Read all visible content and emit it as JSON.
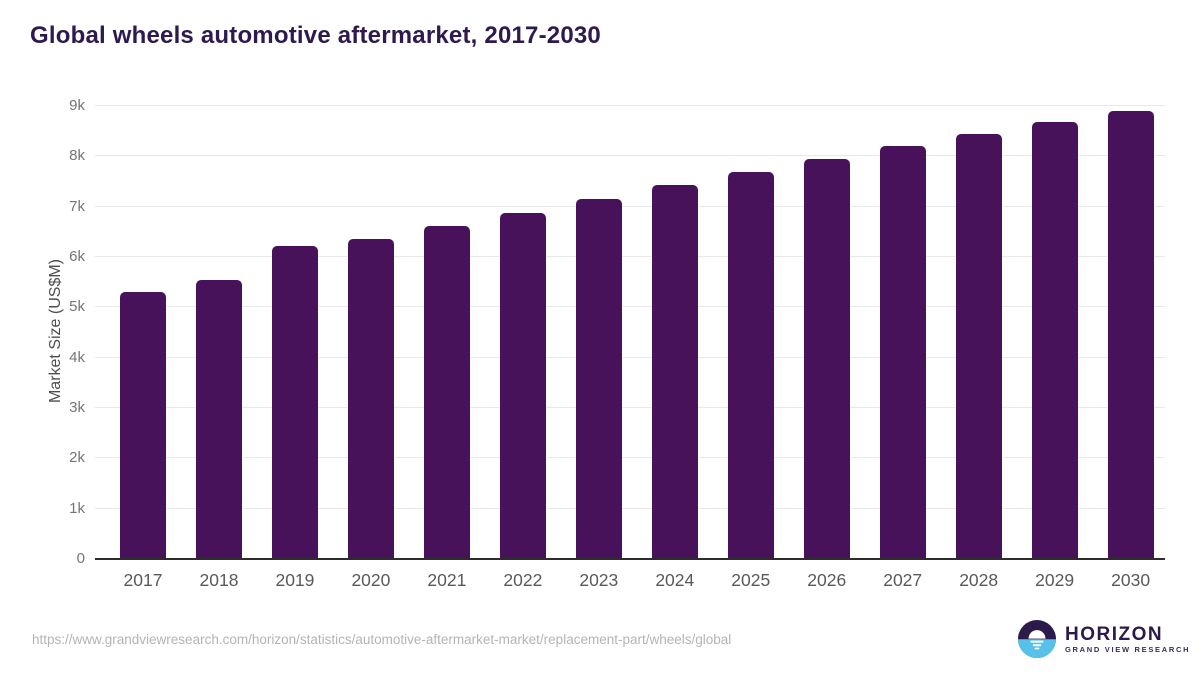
{
  "title": "Global wheels automotive aftermarket, 2017-2030",
  "chart_data": {
    "type": "bar",
    "title": "Global wheels automotive aftermarket, 2017-2030",
    "categories": [
      "2017",
      "2018",
      "2019",
      "2020",
      "2021",
      "2022",
      "2023",
      "2024",
      "2025",
      "2026",
      "2027",
      "2028",
      "2029",
      "2030"
    ],
    "values": [
      5300,
      5540,
      6220,
      6360,
      6610,
      6870,
      7150,
      7430,
      7690,
      7950,
      8200,
      8440,
      8680,
      8900
    ],
    "xlabel": "",
    "ylabel": "Market Size (US$M)",
    "ylim": [
      0,
      9000
    ],
    "ytick_step": 1000,
    "ytick_labels": [
      "0",
      "1k",
      "2k",
      "3k",
      "4k",
      "5k",
      "6k",
      "7k",
      "8k",
      "9k"
    ],
    "grid": true,
    "legend": false,
    "bar_color": "#47125a"
  },
  "colors": {
    "bar": "#47125a",
    "title_text": "#2e1a4e",
    "tick_text": "#757575",
    "gridline": "#e9e9e9",
    "axis_line": "#2d2d2d",
    "url_text": "#b4b4b4",
    "logo_purple": "#2b1a4a",
    "logo_blue": "#58c1e9"
  },
  "footer": {
    "source_url": "https://www.grandviewresearch.com/horizon/statistics/automotive-aftermarket-market/replacement-part/wheels/global",
    "logo": {
      "brand": "HORIZON",
      "sub_brand": "GRAND VIEW RESEARCH"
    }
  }
}
